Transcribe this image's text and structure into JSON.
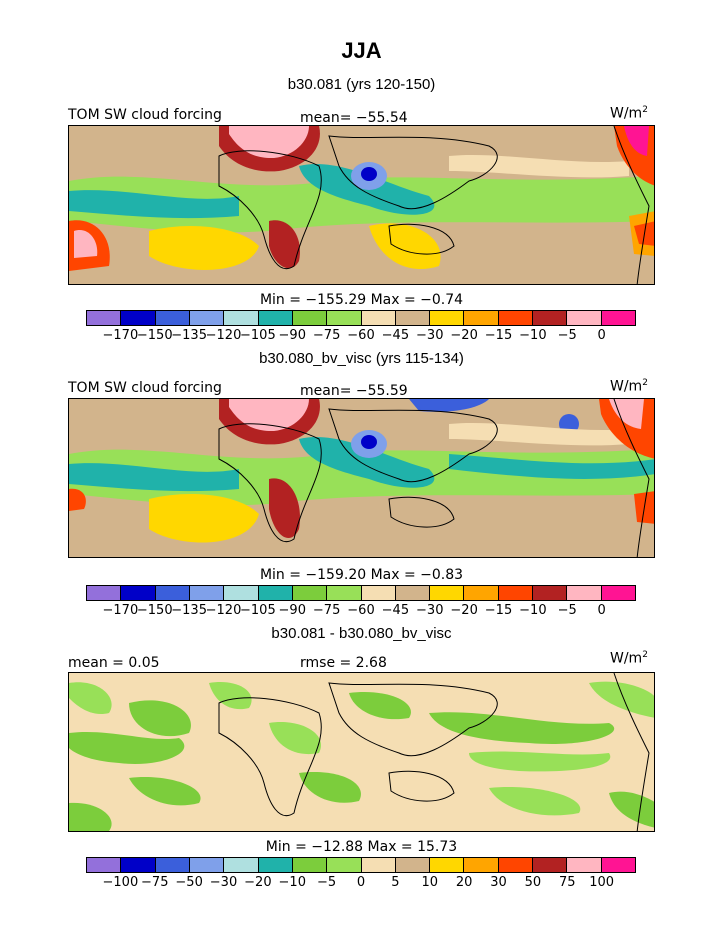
{
  "title": "JJA",
  "panels": [
    {
      "subtitle": "b30.081 (yrs 120-150)",
      "left_label": "TOM SW cloud forcing",
      "center_label": "mean=  −55.54",
      "units": "W/m",
      "units_sup": "2",
      "minmax": "Min = −155.29 Max =   −0.74"
    },
    {
      "subtitle": "b30.080_bv_visc (yrs 115-134)",
      "left_label": "TOM SW cloud forcing",
      "center_label": "mean=  −55.59",
      "units": "W/m",
      "units_sup": "2",
      "minmax": "Min = −159.20 Max =   −0.83"
    },
    {
      "subtitle": "b30.081 - b30.080_bv_visc",
      "left_label": "mean =    0.05",
      "center_label": "rmse =    2.68",
      "units": "W/m",
      "units_sup": "2",
      "minmax": "Min = −12.88 Max =   15.73"
    }
  ],
  "colorbar_colors": [
    "#9370db",
    "#0000c8",
    "#3b5fdb",
    "#7fa0ea",
    "#afe0e0",
    "#20b2aa",
    "#7ccd3c",
    "#98e058",
    "#f5deb3",
    "#d2b48c",
    "#ffd700",
    "#ffa500",
    "#ff4500",
    "#b22222",
    "#ffb6c1",
    "#ff1493"
  ],
  "colorbar_ticks_main": [
    "−170",
    "−150",
    "−135",
    "−120",
    "−105",
    "−90",
    "−75",
    "−60",
    "−45",
    "−30",
    "−20",
    "−15",
    "−10",
    "−5",
    "0"
  ],
  "colorbar_ticks_diff": [
    "−100",
    "−75",
    "−50",
    "−30",
    "−20",
    "−10",
    "−5",
    "0",
    "5",
    "10",
    "20",
    "30",
    "50",
    "75",
    "100"
  ]
}
